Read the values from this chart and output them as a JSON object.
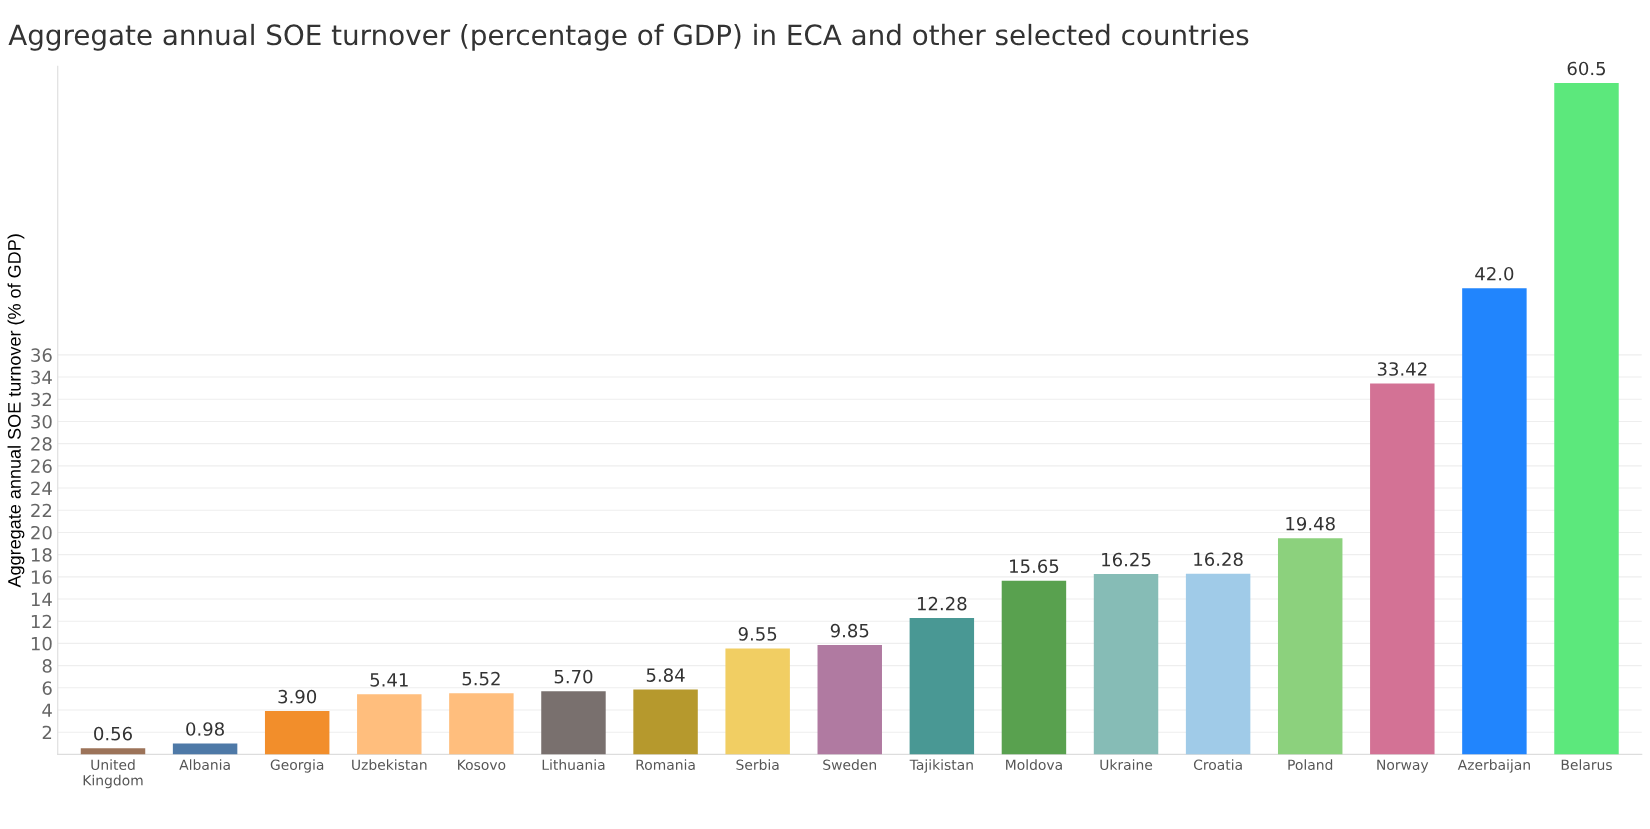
{
  "chart_data": {
    "type": "bar",
    "title": "Aggregate annual SOE turnover (percentage of GDP) in ECA and other selected countries",
    "ylabel": "Aggregate annual SOE turnover (% of GDP)",
    "categories": [
      "United Kingdom",
      "Albania",
      "Georgia",
      "Uzbekistan",
      "Kosovo",
      "Lithuania",
      "Romania",
      "Serbia",
      "Sweden",
      "Tajikistan",
      "Moldova",
      "Ukraine",
      "Croatia",
      "Poland",
      "Norway",
      "Azerbaijan",
      "Belarus"
    ],
    "values": [
      0.56,
      0.98,
      3.9,
      5.41,
      5.52,
      5.7,
      5.84,
      9.55,
      9.85,
      12.28,
      15.65,
      16.25,
      16.28,
      19.48,
      33.42,
      42.0,
      60.5
    ],
    "value_labels": [
      "0.56",
      "0.98",
      "3.90",
      "5.41",
      "5.52",
      "5.70",
      "5.84",
      "9.55",
      "9.85",
      "12.28",
      "15.65",
      "16.25",
      "16.28",
      "19.48",
      "33.42",
      "42.0",
      "60.5"
    ],
    "colors": [
      "#9c7359",
      "#4e79a7",
      "#f28e2b",
      "#ffbe7d",
      "#ffbe7d",
      "#79706e",
      "#b6992d",
      "#f1ce63",
      "#b07aa1",
      "#499894",
      "#59a14f",
      "#86bcb6",
      "#a0cbe8",
      "#8cd17d",
      "#d37295",
      "#2185fd",
      "#5ce87c"
    ],
    "ylim": [
      0,
      62
    ],
    "yticks": [
      2,
      4,
      6,
      8,
      10,
      12,
      14,
      16,
      18,
      20,
      22,
      24,
      26,
      28,
      30,
      32,
      34,
      36
    ],
    "grid": "y"
  }
}
